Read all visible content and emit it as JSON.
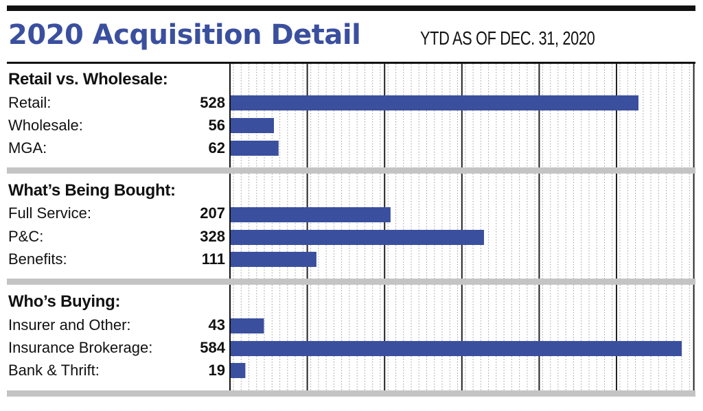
{
  "title": "2020 Acquisition Detail",
  "subtitle": "YTD AS OF DEC. 31, 2020",
  "colors": {
    "accent": "#3a4f9e",
    "separator": "#c4c4c4",
    "text": "#111111"
  },
  "chart_data": {
    "type": "bar",
    "orientation": "horizontal",
    "title": "2020 Acquisition Detail",
    "subtitle": "YTD AS OF DEC. 31, 2020",
    "xlim": [
      0,
      585
    ],
    "grid": true,
    "groups": [
      {
        "title": "Retail vs. Wholesale:",
        "categories": [
          "Retail:",
          "Wholesale:",
          "MGA:"
        ],
        "values": [
          528,
          56,
          62
        ]
      },
      {
        "title": "What’s Being Bought:",
        "categories": [
          "Full Service:",
          "P&C:",
          "Benefits:"
        ],
        "values": [
          207,
          328,
          111
        ]
      },
      {
        "title": "Who’s Buying:",
        "categories": [
          "Insurer and Other:",
          "Insurance Brokerage:",
          "Bank & Thrift:"
        ],
        "values": [
          43,
          584,
          19
        ]
      }
    ]
  }
}
